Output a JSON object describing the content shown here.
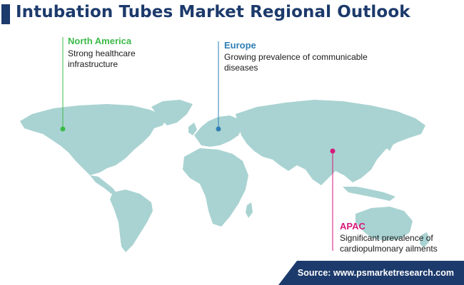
{
  "title": "Intubation Tubes Market Regional Outlook",
  "colors": {
    "title": "#1c3a6b",
    "map_land": "#a9d3d2",
    "north_america": "#3dba4a",
    "europe": "#2e7fb4",
    "apac": "#d6197b",
    "source_bg": "#1c3a6b"
  },
  "regions": {
    "north_america": {
      "name": "North America",
      "desc_line1": "Strong healthcare",
      "desc_line2": "infrastructure"
    },
    "europe": {
      "name": "Europe",
      "desc_line1": "Growing prevalence of communicable",
      "desc_line2": "diseases"
    },
    "apac": {
      "name": "APAC",
      "desc_line1": "Significant prevalence of",
      "desc_line2": "cardiopulmonary ailments"
    }
  },
  "source": "Source: www.psmarketresearch.com"
}
